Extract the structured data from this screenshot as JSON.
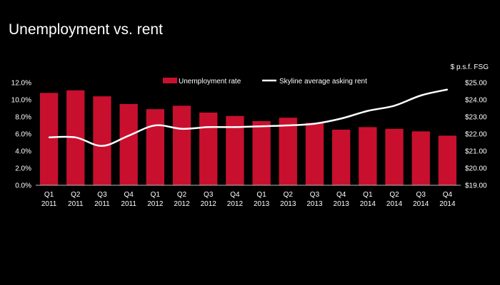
{
  "slide": {
    "title": "Unemployment vs. rent"
  },
  "colors": {
    "background": "#000000",
    "bar": "#c8102e",
    "line": "#ffffff",
    "text": "#ffffff"
  },
  "chart_data": {
    "type": "bar",
    "title": "Unemployment vs. rent",
    "right_axis_label": "$ p.s.f. FSG",
    "categories": [
      [
        "Q1",
        "2011"
      ],
      [
        "Q2",
        "2011"
      ],
      [
        "Q3",
        "2011"
      ],
      [
        "Q4",
        "2011"
      ],
      [
        "Q1",
        "2012"
      ],
      [
        "Q2",
        "2012"
      ],
      [
        "Q3",
        "2012"
      ],
      [
        "Q4",
        "2012"
      ],
      [
        "Q1",
        "2013"
      ],
      [
        "Q2",
        "2013"
      ],
      [
        "Q3",
        "2013"
      ],
      [
        "Q4",
        "2013"
      ],
      [
        "Q1",
        "2014"
      ],
      [
        "Q2",
        "2014"
      ],
      [
        "Q3",
        "2014"
      ],
      [
        "Q4",
        "2014"
      ]
    ],
    "left_axis": {
      "ticks": [
        "0.0%",
        "2.0%",
        "4.0%",
        "6.0%",
        "8.0%",
        "10.0%",
        "12.0%"
      ],
      "ylim": [
        0,
        12
      ]
    },
    "right_axis": {
      "ticks": [
        "$19.00",
        "$20.00",
        "$21.00",
        "$22.00",
        "$23.00",
        "$24.00",
        "$25.00"
      ],
      "ylim": [
        19,
        25
      ]
    },
    "legend_position": "top",
    "grid": false,
    "series": [
      {
        "name": "Unemployment rate",
        "type": "bar",
        "axis": "left",
        "values": [
          10.8,
          11.1,
          10.4,
          9.5,
          8.9,
          9.3,
          8.5,
          8.1,
          7.5,
          7.9,
          7.3,
          6.5,
          6.8,
          6.6,
          6.3,
          5.8
        ]
      },
      {
        "name": "Skyline average asking rent",
        "type": "line",
        "axis": "right",
        "values": [
          21.8,
          21.8,
          21.3,
          21.9,
          22.5,
          22.3,
          22.4,
          22.4,
          22.45,
          22.5,
          22.6,
          22.9,
          23.35,
          23.65,
          24.25,
          24.6
        ]
      }
    ]
  }
}
